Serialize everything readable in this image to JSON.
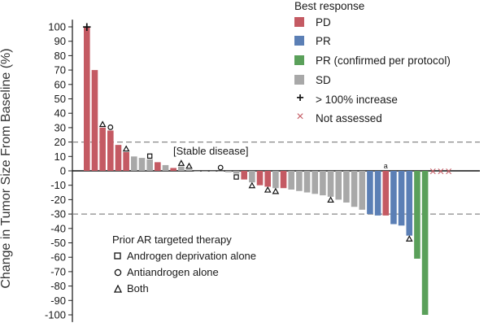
{
  "chart_data": {
    "type": "bar",
    "ylabel": "Change in Tumor Size From Baseline (%)",
    "ylim": [
      -105,
      105
    ],
    "yticks": [
      100,
      90,
      80,
      70,
      60,
      50,
      40,
      30,
      20,
      10,
      0,
      -10,
      -20,
      -30,
      -40,
      -50,
      -60,
      -70,
      -80,
      -90,
      -100
    ],
    "reference_lines": [
      20,
      -30
    ],
    "annotation": "[Stable disease]",
    "bar_footnote": "a",
    "legend_title": "Best response",
    "legend": [
      {
        "key": "PD",
        "label": "PD",
        "color": "#c45a63"
      },
      {
        "key": "PR",
        "label": "PR",
        "color": "#5b7fb5"
      },
      {
        "key": "PRc",
        "label": "PR (confirmed per protocol)",
        "color": "#5aa05a"
      },
      {
        "key": "SD",
        "label": "SD",
        "color": "#a8a8a8"
      }
    ],
    "symbol_legend": [
      {
        "symbol": "+",
        "label": "> 100% increase",
        "color": "#1a1a1a"
      },
      {
        "symbol": "×",
        "label": "Not assessed",
        "color": "#c45a63"
      }
    ],
    "marker_legend_title": "Prior AR targeted therapy",
    "marker_legend": [
      {
        "marker": "square",
        "label": "Androgen deprivation alone"
      },
      {
        "marker": "circle",
        "label": "Antiandrogen alone"
      },
      {
        "marker": "triangle",
        "label": "Both"
      }
    ],
    "series": [
      {
        "v": 100,
        "r": "PD",
        "plus": true
      },
      {
        "v": 70,
        "r": "PD"
      },
      {
        "v": 30,
        "r": "PD",
        "m": "triangle"
      },
      {
        "v": 28,
        "r": "PD",
        "m": "circle"
      },
      {
        "v": 18,
        "r": "PD"
      },
      {
        "v": 13,
        "r": "PD",
        "m": "triangle"
      },
      {
        "v": 10,
        "r": "SD"
      },
      {
        "v": 9,
        "r": "SD"
      },
      {
        "v": 8,
        "r": "SD",
        "m": "square"
      },
      {
        "v": 6,
        "r": "PD"
      },
      {
        "v": 4,
        "r": "SD"
      },
      {
        "v": 2,
        "r": "PD"
      },
      {
        "v": 3,
        "r": "SD",
        "m": "triangle"
      },
      {
        "v": 1,
        "r": "SD",
        "m": "triangle"
      },
      {
        "v": 0,
        "r": "SD"
      },
      {
        "v": 0,
        "r": "SD"
      },
      {
        "v": 0,
        "r": "SD"
      },
      {
        "v": 0,
        "r": "SD",
        "m": "circle"
      },
      {
        "v": -1,
        "r": "SD"
      },
      {
        "v": -2,
        "r": "SD",
        "m": "square"
      },
      {
        "v": -6,
        "r": "PD"
      },
      {
        "v": -8,
        "r": "SD",
        "m": "triangle"
      },
      {
        "v": -10,
        "r": "PD"
      },
      {
        "v": -11,
        "r": "PD",
        "m": "triangle"
      },
      {
        "v": -12,
        "r": "SD",
        "m": "triangle"
      },
      {
        "v": -12,
        "r": "PD"
      },
      {
        "v": -13,
        "r": "SD"
      },
      {
        "v": -14,
        "r": "SD"
      },
      {
        "v": -15,
        "r": "SD"
      },
      {
        "v": -16,
        "r": "SD"
      },
      {
        "v": -17,
        "r": "SD"
      },
      {
        "v": -18,
        "r": "SD",
        "m": "triangle"
      },
      {
        "v": -20,
        "r": "SD"
      },
      {
        "v": -22,
        "r": "SD"
      },
      {
        "v": -25,
        "r": "SD"
      },
      {
        "v": -27,
        "r": "SD"
      },
      {
        "v": -30,
        "r": "PR"
      },
      {
        "v": -31,
        "r": "PR"
      },
      {
        "v": -31,
        "r": "PD"
      },
      {
        "v": -37,
        "r": "PR"
      },
      {
        "v": -38,
        "r": "PR"
      },
      {
        "v": -45,
        "r": "PR",
        "m": "triangle"
      },
      {
        "v": -61,
        "r": "PRc"
      },
      {
        "v": -100,
        "r": "PRc"
      },
      {
        "v": 0,
        "r": "NA",
        "na": true
      },
      {
        "v": 0,
        "r": "NA",
        "na": true
      },
      {
        "v": 0,
        "r": "NA",
        "na": true
      }
    ]
  }
}
